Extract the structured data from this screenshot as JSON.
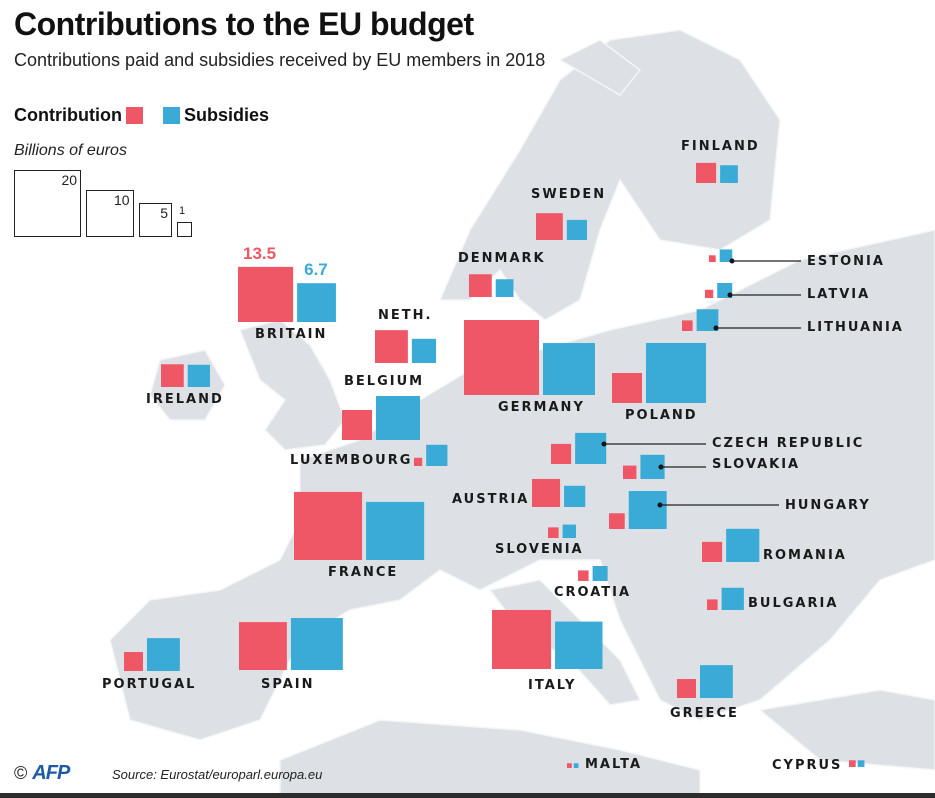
{
  "header": {
    "title": "Contributions to the EU budget",
    "subtitle": "Contributions paid and subsidies received by EU members in 2018"
  },
  "legend": {
    "contribution_label": "Contribution",
    "subsidies_label": "Subsidies",
    "units": "Billions of euros",
    "scale": [
      {
        "label": "20",
        "value": 20
      },
      {
        "label": "10",
        "value": 10
      },
      {
        "label": "5",
        "value": 5
      },
      {
        "label": "1",
        "value": 1
      }
    ]
  },
  "colors": {
    "contribution": "#ef5767",
    "subsidies": "#3aaad6",
    "land": "#dde1e5",
    "sea": "#ffffff",
    "border": "#f4f6f8"
  },
  "footer": {
    "copyright": "©",
    "logo": "AFP",
    "source": "Source: Eurostat/europarl.europa.eu"
  },
  "chart_data": {
    "type": "proportional-square-map",
    "title": "Contributions to the EU budget",
    "subtitle": "Contributions paid and subsidies received by EU members in 2018",
    "units": "Billions of euros",
    "series": [
      {
        "name": "Contribution",
        "color": "#ef5767"
      },
      {
        "name": "Subsidies",
        "color": "#3aaad6"
      }
    ],
    "legend_placement": "top-left",
    "countries": [
      {
        "name": "BRITAIN",
        "contribution": 13.5,
        "subsidies": 6.7,
        "labeled_values": true
      },
      {
        "name": "IRELAND",
        "contribution": 2.3,
        "subsidies": 2.2
      },
      {
        "name": "NETH.",
        "contribution": 4.8,
        "subsidies": 2.6
      },
      {
        "name": "BELGIUM",
        "contribution": 4.0,
        "subsidies": 8.6
      },
      {
        "name": "LUXEMBOURG",
        "contribution": 0.3,
        "subsidies": 2.0
      },
      {
        "name": "FRANCE",
        "contribution": 20.6,
        "subsidies": 15.0
      },
      {
        "name": "SPAIN",
        "contribution": 10.2,
        "subsidies": 12.0
      },
      {
        "name": "PORTUGAL",
        "contribution": 1.6,
        "subsidies": 4.8
      },
      {
        "name": "DENMARK",
        "contribution": 2.3,
        "subsidies": 1.4
      },
      {
        "name": "SWEDEN",
        "contribution": 3.2,
        "subsidies": 1.8
      },
      {
        "name": "FINLAND",
        "contribution": 1.8,
        "subsidies": 1.4
      },
      {
        "name": "GERMANY",
        "contribution": 25.0,
        "subsidies": 12.0
      },
      {
        "name": "POLAND",
        "contribution": 4.0,
        "subsidies": 16.0
      },
      {
        "name": "ESTONIA",
        "contribution": 0.2,
        "subsidies": 0.7
      },
      {
        "name": "LATVIA",
        "contribution": 0.3,
        "subsidies": 1.0
      },
      {
        "name": "LITHUANIA",
        "contribution": 0.5,
        "subsidies": 2.1
      },
      {
        "name": "CZECH REPUBLIC",
        "contribution": 1.8,
        "subsidies": 4.3
      },
      {
        "name": "SLOVAKIA",
        "contribution": 0.8,
        "subsidies": 2.6
      },
      {
        "name": "HUNGARY",
        "contribution": 1.1,
        "subsidies": 6.4
      },
      {
        "name": "AUSTRIA",
        "contribution": 3.5,
        "subsidies": 2.0
      },
      {
        "name": "SLOVENIA",
        "contribution": 0.5,
        "subsidies": 0.8
      },
      {
        "name": "CROATIA",
        "contribution": 0.5,
        "subsidies": 1.0
      },
      {
        "name": "ROMANIA",
        "contribution": 1.8,
        "subsidies": 4.9
      },
      {
        "name": "BULGARIA",
        "contribution": 0.5,
        "subsidies": 2.2
      },
      {
        "name": "ITALY",
        "contribution": 15.5,
        "subsidies": 10.0
      },
      {
        "name": "GREECE",
        "contribution": 1.6,
        "subsidies": 4.8
      },
      {
        "name": "MALTA",
        "contribution": 0.1,
        "subsidies": 0.1
      },
      {
        "name": "CYPRUS",
        "contribution": 0.2,
        "subsidies": 0.2
      }
    ]
  }
}
